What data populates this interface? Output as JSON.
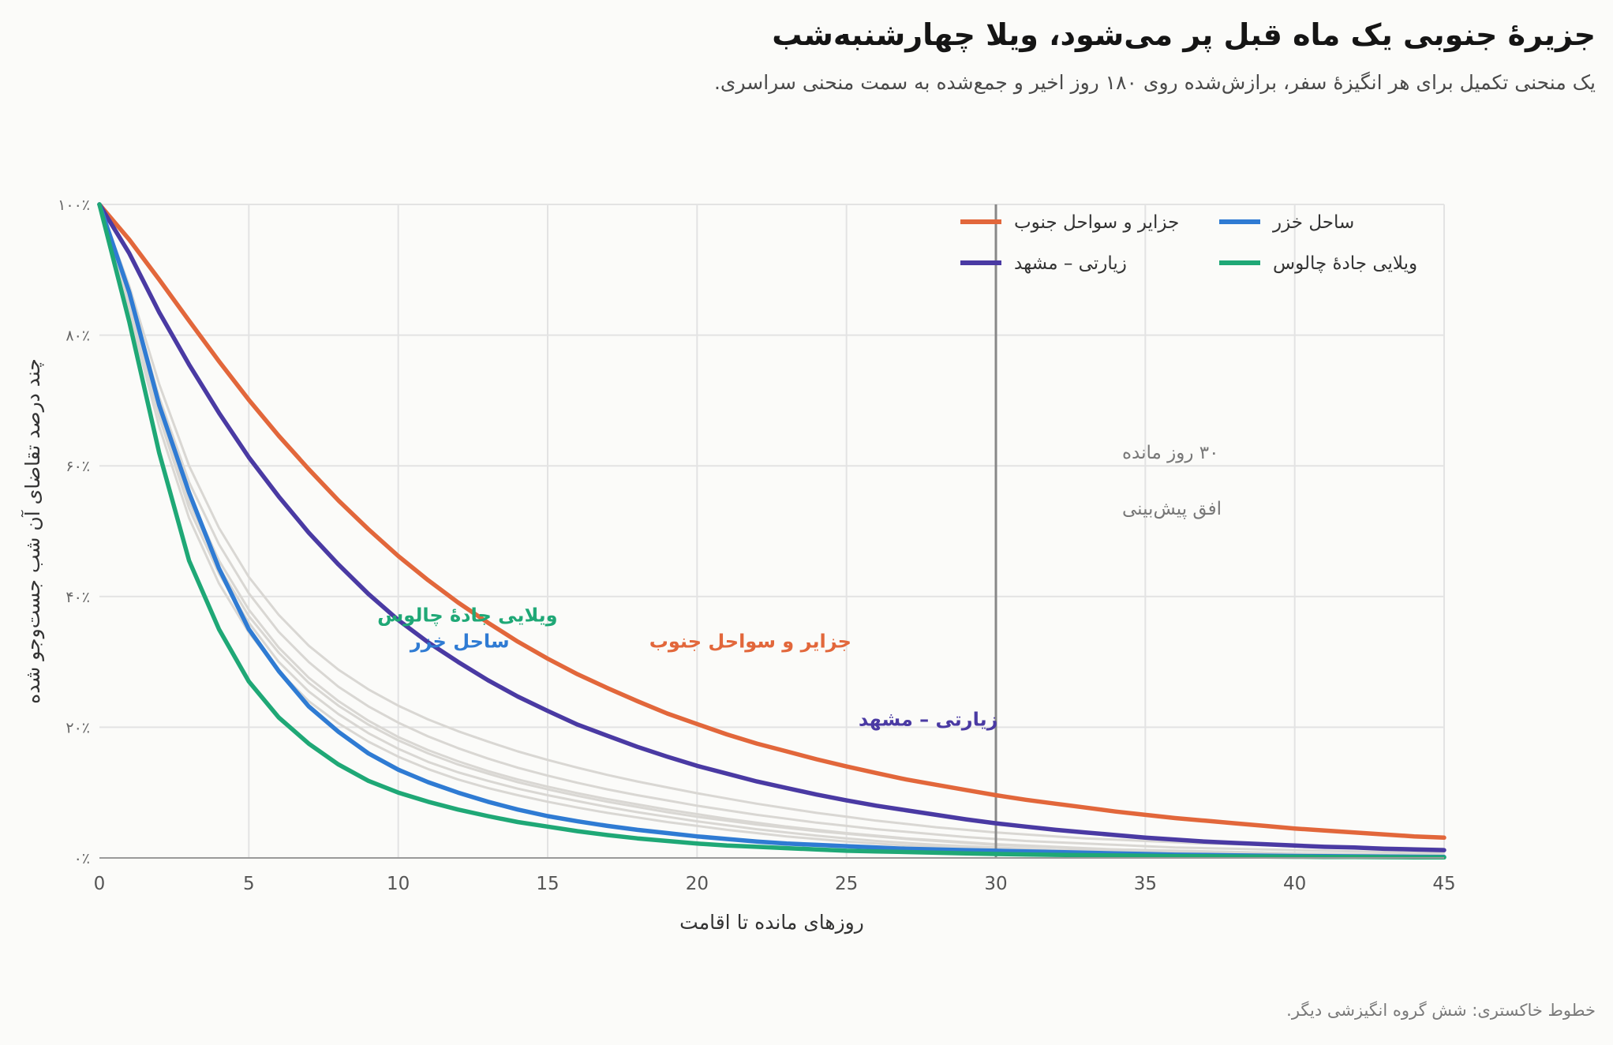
{
  "header": {
    "title": "جزیرهٔ جنوبی یک ماه قبل پر می‌شود، ویلا چهارشنبه‌شب",
    "subtitle": "یک منحنی تکمیل برای هر انگیزهٔ سفر، برازش‌شده روی ۱۸۰ روز اخیر و جمع‌شده به سمت منحنی سراسری."
  },
  "footnote": "خطوط خاکستری: شش گروه انگیزشی دیگر.",
  "colors": {
    "islands": "#e2673b",
    "caspian": "#2f7bd3",
    "pilgrimage": "#4a3aa3",
    "villa": "#1fa876",
    "background_lines": "#d9d7d3",
    "grid": "#e3e3e3",
    "reference_line": "#888888"
  },
  "chart_data": {
    "type": "line",
    "xlabel": "روزهای مانده تا اقامت",
    "ylabel": "چند درصد تقاضای آن شب جست‌وجو شده",
    "xlim": [
      0,
      45
    ],
    "ylim": [
      0,
      100
    ],
    "x_ticks": [
      "0",
      "5",
      "10",
      "15",
      "20",
      "25",
      "30",
      "35",
      "40",
      "45"
    ],
    "y_ticks": [
      "۰٪",
      "۲۰٪",
      "۴۰٪",
      "۶۰٪",
      "۸۰٪",
      "۱۰۰٪"
    ],
    "grid": true,
    "legend_position": "top-right",
    "x": [
      0,
      1,
      2,
      3,
      4,
      5,
      6,
      7,
      8,
      9,
      10,
      11,
      12,
      13,
      14,
      15,
      16,
      17,
      18,
      19,
      20,
      21,
      22,
      23,
      24,
      25,
      26,
      27,
      28,
      29,
      30,
      31,
      32,
      33,
      34,
      35,
      36,
      37,
      38,
      39,
      40,
      41,
      42,
      43,
      44,
      45
    ],
    "series": [
      {
        "name": "جزایر و سواحل جنوب",
        "color_key": "islands",
        "values": [
          100,
          94.6,
          88.5,
          82.2,
          76.0,
          70.1,
          64.6,
          59.5,
          54.7,
          50.3,
          46.2,
          42.5,
          39.1,
          36.0,
          33.1,
          30.5,
          28.1,
          26.0,
          24.0,
          22.1,
          20.5,
          18.9,
          17.5,
          16.3,
          15.1,
          14.0,
          13.0,
          12.0,
          11.2,
          10.4,
          9.6,
          8.9,
          8.3,
          7.7,
          7.1,
          6.6,
          6.1,
          5.7,
          5.3,
          4.9,
          4.5,
          4.2,
          3.9,
          3.6,
          3.3,
          3.1
        ]
      },
      {
        "name": "زیارتی – مشهد",
        "color_key": "pilgrimage",
        "values": [
          100,
          92.5,
          83.5,
          75.5,
          68.1,
          61.3,
          55.3,
          49.8,
          44.9,
          40.4,
          36.4,
          33.0,
          30.0,
          27.2,
          24.7,
          22.5,
          20.4,
          18.7,
          17.0,
          15.5,
          14.1,
          12.9,
          11.7,
          10.7,
          9.7,
          8.8,
          8.0,
          7.3,
          6.6,
          5.9,
          5.3,
          4.8,
          4.3,
          3.9,
          3.5,
          3.1,
          2.8,
          2.5,
          2.3,
          2.1,
          1.9,
          1.7,
          1.6,
          1.4,
          1.3,
          1.2
        ]
      },
      {
        "name": "ساحل خزر",
        "color_key": "caspian",
        "values": [
          100,
          86.5,
          69.3,
          55.9,
          44.3,
          35.0,
          28.6,
          23.2,
          19.3,
          16.0,
          13.5,
          11.6,
          10.0,
          8.6,
          7.4,
          6.4,
          5.6,
          4.9,
          4.3,
          3.8,
          3.3,
          2.9,
          2.5,
          2.2,
          2.0,
          1.8,
          1.6,
          1.4,
          1.3,
          1.2,
          1.1,
          1.0,
          0.9,
          0.8,
          0.7,
          0.6,
          0.5,
          0.45,
          0.4,
          0.35,
          0.3,
          0.27,
          0.24,
          0.21,
          0.18,
          0.15
        ]
      },
      {
        "name": "ویلایی جادهٔ چالوس",
        "color_key": "villa",
        "values": [
          100,
          82.0,
          62.0,
          45.5,
          35.0,
          27.0,
          21.5,
          17.5,
          14.3,
          11.8,
          10.0,
          8.6,
          7.4,
          6.4,
          5.5,
          4.8,
          4.1,
          3.5,
          3.0,
          2.6,
          2.2,
          1.9,
          1.7,
          1.5,
          1.3,
          1.1,
          1.0,
          0.9,
          0.8,
          0.7,
          0.6,
          0.53,
          0.47,
          0.42,
          0.37,
          0.33,
          0.29,
          0.26,
          0.23,
          0.2,
          0.18,
          0.16,
          0.14,
          0.12,
          0.1,
          0.08
        ]
      }
    ],
    "background_series": [
      {
        "values": [
          100,
          83.5,
          66.0,
          52.0,
          42.0,
          34.5,
          28.6,
          24.0,
          20.6,
          17.8,
          15.5,
          13.6,
          12.0,
          10.7,
          9.6,
          8.6,
          7.7,
          6.9,
          6.2,
          5.5,
          4.9,
          4.3,
          3.8,
          3.3,
          2.9,
          2.5,
          2.2,
          1.9,
          1.7,
          1.5,
          1.3,
          1.1,
          1.0,
          0.9,
          0.8,
          0.7,
          0.6,
          0.55,
          0.5,
          0.45,
          0.4,
          0.36,
          0.32,
          0.28,
          0.25,
          0.22
        ]
      },
      {
        "values": [
          100,
          84.5,
          67.5,
          53.5,
          43.5,
          36.0,
          30.0,
          25.5,
          22.0,
          19.1,
          16.7,
          14.7,
          13.1,
          11.8,
          10.6,
          9.6,
          8.7,
          7.8,
          7.0,
          6.3,
          5.6,
          5.0,
          4.4,
          3.9,
          3.4,
          3.0,
          2.6,
          2.3,
          2.0,
          1.8,
          1.6,
          1.4,
          1.2,
          1.1,
          1.0,
          0.9,
          0.8,
          0.7,
          0.63,
          0.57,
          0.51,
          0.46,
          0.41,
          0.37,
          0.33,
          0.3
        ]
      },
      {
        "values": [
          100,
          85.5,
          69.0,
          55.5,
          45.5,
          38.0,
          32.2,
          27.6,
          24.0,
          21.0,
          18.5,
          16.5,
          14.8,
          13.3,
          12.0,
          10.9,
          9.9,
          9.0,
          8.2,
          7.4,
          6.7,
          6.0,
          5.4,
          4.8,
          4.3,
          3.8,
          3.4,
          3.0,
          2.7,
          2.4,
          2.1,
          1.9,
          1.7,
          1.5,
          1.3,
          1.2,
          1.1,
          1.0,
          0.9,
          0.8,
          0.7,
          0.63,
          0.56,
          0.5,
          0.44,
          0.4
        ]
      },
      {
        "values": [
          100,
          86.5,
          70.5,
          57.5,
          48.0,
          40.5,
          34.6,
          30.0,
          26.2,
          23.2,
          20.7,
          18.6,
          16.8,
          15.2,
          13.8,
          12.6,
          11.5,
          10.5,
          9.6,
          8.8,
          8.0,
          7.3,
          6.6,
          6.0,
          5.4,
          4.9,
          4.4,
          4.0,
          3.6,
          3.2,
          2.9,
          2.6,
          2.4,
          2.2,
          2.0,
          1.8,
          1.6,
          1.5,
          1.4,
          1.3,
          1.2,
          1.1,
          1.0,
          0.9,
          0.8,
          0.7
        ]
      },
      {
        "values": [
          100,
          87.5,
          72.5,
          60.0,
          50.5,
          43.0,
          37.2,
          32.5,
          28.8,
          25.8,
          23.3,
          21.2,
          19.4,
          17.8,
          16.3,
          15.0,
          13.8,
          12.7,
          11.7,
          10.8,
          9.9,
          9.1,
          8.3,
          7.6,
          6.9,
          6.3,
          5.7,
          5.2,
          4.7,
          4.3,
          3.9,
          3.6,
          3.3,
          3.0,
          2.8,
          2.6,
          2.4,
          2.2,
          2.1,
          2.0,
          1.9,
          1.8,
          1.7,
          1.6,
          1.5,
          1.4
        ]
      },
      {
        "values": [
          100,
          85.0,
          68.0,
          54.5,
          44.5,
          37.0,
          31.4,
          26.8,
          23.3,
          20.4,
          18.0,
          16.0,
          14.3,
          12.9,
          11.6,
          10.5,
          9.5,
          8.6,
          7.8,
          7.0,
          6.3,
          5.7,
          5.1,
          4.6,
          4.1,
          3.7,
          3.3,
          2.9,
          2.6,
          2.3,
          2.0,
          1.8,
          1.6,
          1.4,
          1.3,
          1.2,
          1.1,
          1.0,
          0.9,
          0.8,
          0.7,
          0.65,
          0.58,
          0.52,
          0.46,
          0.4
        ]
      }
    ],
    "reference_line": {
      "x": 30,
      "label_line1": "۳۰ روز مانده",
      "label_line2": "افق پیش‌بینی"
    },
    "inline_labels": [
      {
        "text": "ویلایی جادهٔ چالوس",
        "color_key": "villa",
        "x": 9.3,
        "y": 36.2
      },
      {
        "text": "ساحل خزر",
        "color_key": "caspian",
        "x": 10.4,
        "y": 32.2
      },
      {
        "text": "جزایر و سواحل جنوب",
        "color_key": "islands",
        "x": 18.4,
        "y": 32.2
      },
      {
        "text": "زیارتی – مشهد",
        "color_key": "pilgrimage",
        "x": 25.4,
        "y": 20.2
      }
    ],
    "legend": [
      {
        "label": "جزایر و سواحل جنوب",
        "color_key": "islands"
      },
      {
        "label": "ساحل خزر",
        "color_key": "caspian"
      },
      {
        "label": "زیارتی – مشهد",
        "color_key": "pilgrimage"
      },
      {
        "label": "ویلایی جادهٔ چالوس",
        "color_key": "villa"
      }
    ]
  }
}
